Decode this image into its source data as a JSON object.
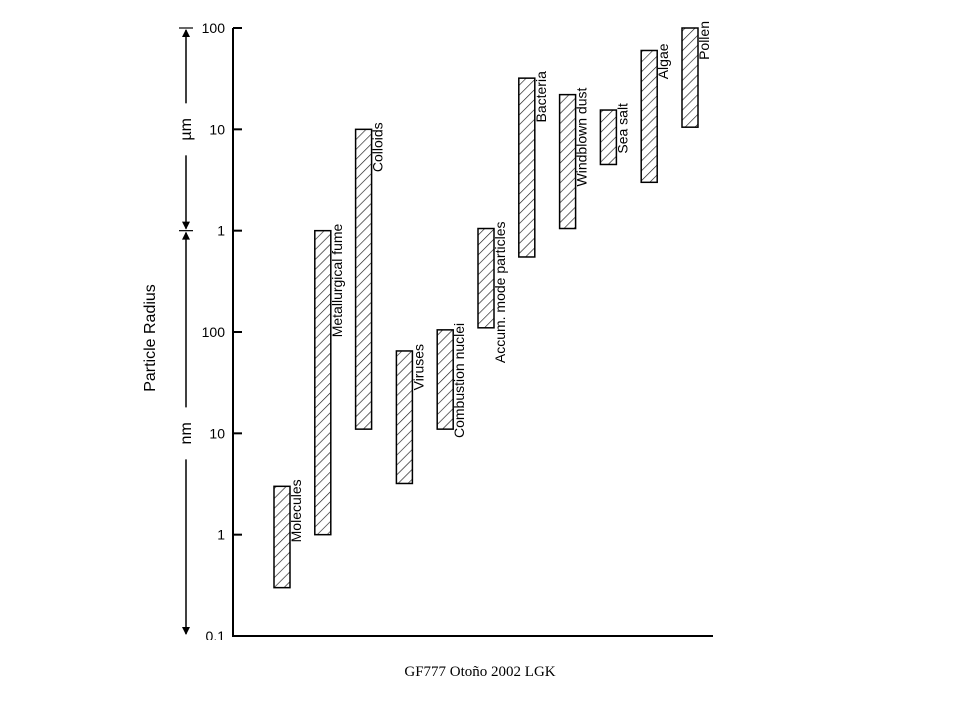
{
  "chart_data": {
    "type": "bar",
    "orientation": "vertical-range",
    "title": "",
    "ylabel": "Particle Radius",
    "y_scale": "log",
    "y_unit": "m",
    "ylim": [
      1e-10,
      0.0001
    ],
    "ticks": [
      {
        "label": "0.1",
        "value": 1e-10
      },
      {
        "label": "1",
        "value": 1e-09
      },
      {
        "label": "10",
        "value": 1e-08
      },
      {
        "label": "100",
        "value": 1e-07
      },
      {
        "label": "1",
        "value": 1e-06
      },
      {
        "label": "10",
        "value": 1e-05
      },
      {
        "label": "100",
        "value": 0.0001
      }
    ],
    "unit_ranges": [
      {
        "label": "nm",
        "from": 1e-10,
        "to": 1e-06
      },
      {
        "label": "µm",
        "from": 1e-06,
        "to": 0.0001
      }
    ],
    "categories": [
      "Molecules",
      "Metallurgical fume",
      "Colloids",
      "Viruses",
      "Combustion nuclei",
      "Accum. mode particles",
      "Bacteria",
      "Windblown dust",
      "Sea salt",
      "Algae",
      "Pollen"
    ],
    "ranges": [
      [
        3e-10,
        3e-09
      ],
      [
        1e-09,
        1e-06
      ],
      [
        1.1e-08,
        1e-05
      ],
      [
        3.2e-09,
        6.5e-08
      ],
      [
        1.1e-08,
        1.05e-07
      ],
      [
        1.1e-07,
        1.05e-06
      ],
      [
        5.5e-07,
        3.2e-05
      ],
      [
        1.05e-06,
        2.2e-05
      ],
      [
        4.5e-06,
        1.55e-05
      ],
      [
        3e-06,
        6e-05
      ],
      [
        1.05e-05,
        0.0001
      ]
    ],
    "fill": "diagonal-hatch",
    "grid": false,
    "legend": "none"
  },
  "footer": "GF777 Otoño 2002 LGK"
}
